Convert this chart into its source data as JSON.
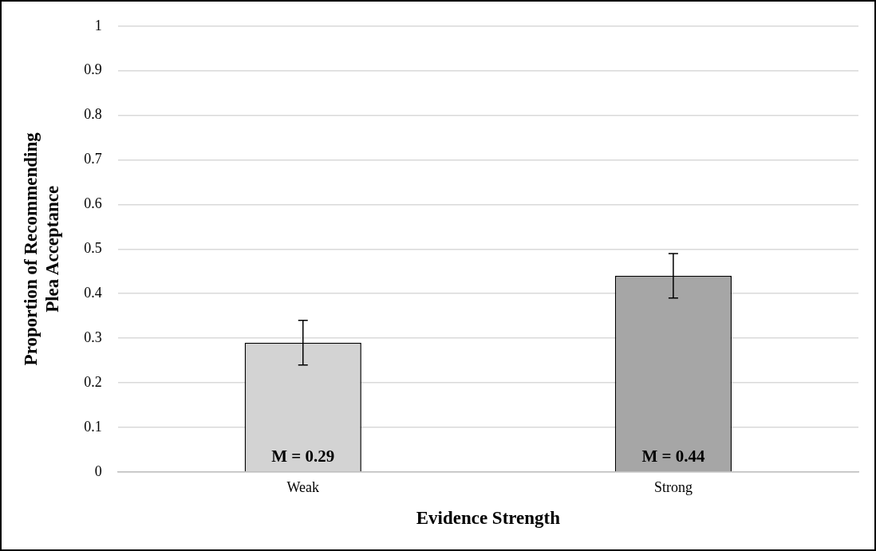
{
  "chart_data": {
    "type": "bar",
    "xlabel": "Evidence Strength",
    "ylabel": "Proportion of Recommending Plea Acceptance",
    "categories": [
      "Weak",
      "Strong"
    ],
    "values": [
      0.29,
      0.44
    ],
    "colors": [
      "#d3d3d3",
      "#a6a6a6"
    ],
    "errors": [
      0.05,
      0.05
    ],
    "value_labels": [
      "M = 0.29",
      "M = 0.44"
    ],
    "ylim": [
      0,
      1
    ],
    "yticks": [
      0,
      0.1,
      0.2,
      0.3,
      0.4,
      0.5,
      0.6,
      0.7,
      0.8,
      0.9,
      1
    ],
    "grid": "y",
    "legend": false
  }
}
